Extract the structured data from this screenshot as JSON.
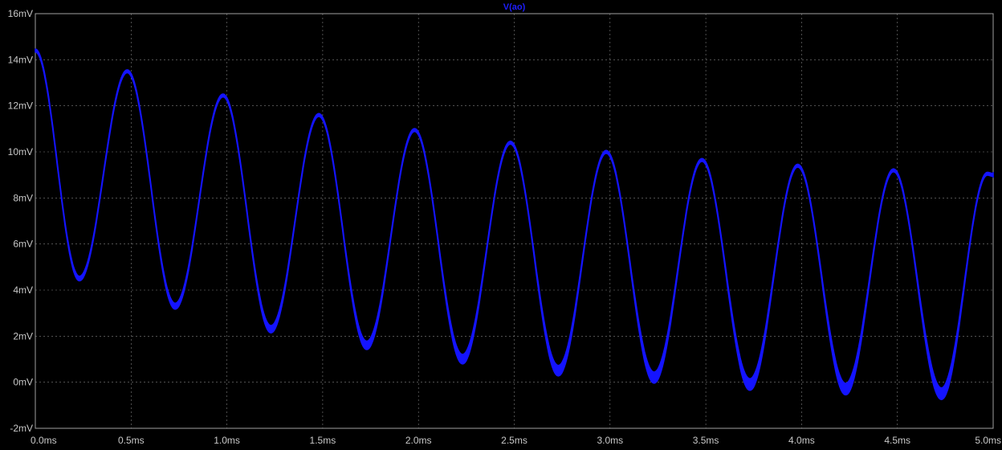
{
  "chart_data": {
    "type": "line",
    "title": "V(ao)",
    "xlabel": "",
    "ylabel": "",
    "xlim": [
      0,
      5
    ],
    "ylim": [
      -2,
      16
    ],
    "x_unit": "ms",
    "y_unit": "mV",
    "x_ticks": [
      "0.0ms",
      "0.5ms",
      "1.0ms",
      "1.5ms",
      "2.0ms",
      "2.5ms",
      "3.0ms",
      "3.5ms",
      "4.0ms",
      "4.5ms",
      "5.0ms"
    ],
    "y_ticks": [
      "-2mV",
      "0mV",
      "2mV",
      "4mV",
      "6mV",
      "8mV",
      "10mV",
      "12mV",
      "14mV",
      "16mV"
    ],
    "grid": true,
    "background": "#000000",
    "grid_color": "#808080",
    "tick_color": "#c8c8c8",
    "series": [
      {
        "name": "V(ao)",
        "color": "#1414ff",
        "ripple_band_mV": 0.5,
        "points": [
          [
            0.0,
            14.4
          ],
          [
            0.23,
            4.5
          ],
          [
            0.48,
            13.5
          ],
          [
            0.73,
            3.3
          ],
          [
            0.98,
            12.45
          ],
          [
            1.23,
            2.3
          ],
          [
            1.48,
            11.6
          ],
          [
            1.73,
            1.6
          ],
          [
            1.98,
            10.95
          ],
          [
            2.23,
            1.0
          ],
          [
            2.48,
            10.4
          ],
          [
            2.73,
            0.5
          ],
          [
            2.98,
            10.0
          ],
          [
            3.23,
            0.2
          ],
          [
            3.48,
            9.65
          ],
          [
            3.73,
            -0.1
          ],
          [
            3.98,
            9.4
          ],
          [
            4.23,
            -0.3
          ],
          [
            4.48,
            9.2
          ],
          [
            4.73,
            -0.5
          ],
          [
            4.97,
            9.05
          ],
          [
            5.0,
            9.0
          ]
        ]
      }
    ]
  }
}
